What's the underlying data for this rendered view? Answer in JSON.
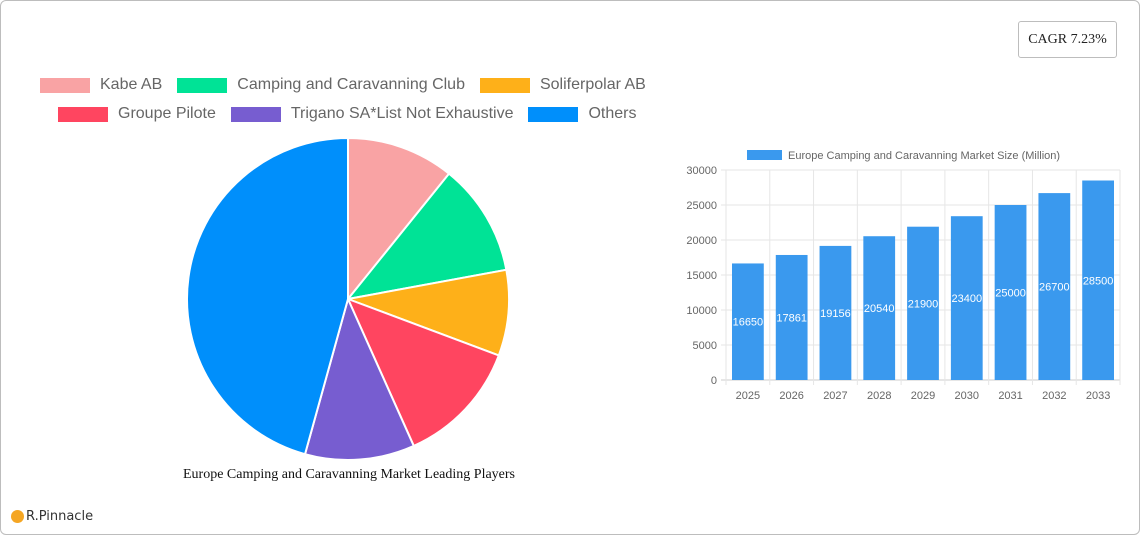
{
  "cagr_label": "CAGR 7.23%",
  "pie": {
    "title": "Europe Camping and Caravanning Market Leading Players",
    "legend": [
      {
        "label": "Kabe AB",
        "color": "#f9a3a4"
      },
      {
        "label": "Camping and Caravanning Club",
        "color": "#00e396"
      },
      {
        "label": "Soliferpolar AB",
        "color": "#feb019"
      },
      {
        "label": "Groupe Pilote",
        "color": "#ff4560"
      },
      {
        "label": "Trigano SA*List Not Exhaustive",
        "color": "#775dd0"
      },
      {
        "label": "Others",
        "color": "#008ffb"
      }
    ]
  },
  "bar": {
    "legend_label": "Europe Camping and Caravanning Market Size (Million)",
    "color": "#3a99ee"
  },
  "brand": "R.Pinnacle",
  "chart_data": [
    {
      "type": "pie",
      "title": "Europe Camping and Caravanning Market Leading Players",
      "categories": [
        "Kabe AB",
        "Camping and Caravanning Club",
        "Soliferpolar AB",
        "Groupe Pilote",
        "Trigano SA*List Not Exhaustive",
        "Others"
      ],
      "values": [
        10.8,
        11.3,
        8.6,
        12.6,
        11.0,
        45.7
      ],
      "colors": [
        "#f9a3a4",
        "#00e396",
        "#feb019",
        "#ff4560",
        "#775dd0",
        "#008ffb"
      ],
      "legend_position": "top"
    },
    {
      "type": "bar",
      "title": "",
      "categories": [
        "2025",
        "2026",
        "2027",
        "2028",
        "2029",
        "2030",
        "2031",
        "2032",
        "2033"
      ],
      "series": [
        {
          "name": "Europe Camping and Caravanning Market Size (Million)",
          "values": [
            16650,
            17861,
            19156,
            20540,
            21900,
            23400,
            25000,
            26700,
            28500
          ]
        }
      ],
      "xlabel": "",
      "ylabel": "",
      "ylim": [
        0,
        30000
      ],
      "yticks": [
        0,
        5000,
        10000,
        15000,
        20000,
        25000,
        30000
      ],
      "grid": true,
      "legend_position": "top",
      "data_labels": true
    }
  ]
}
